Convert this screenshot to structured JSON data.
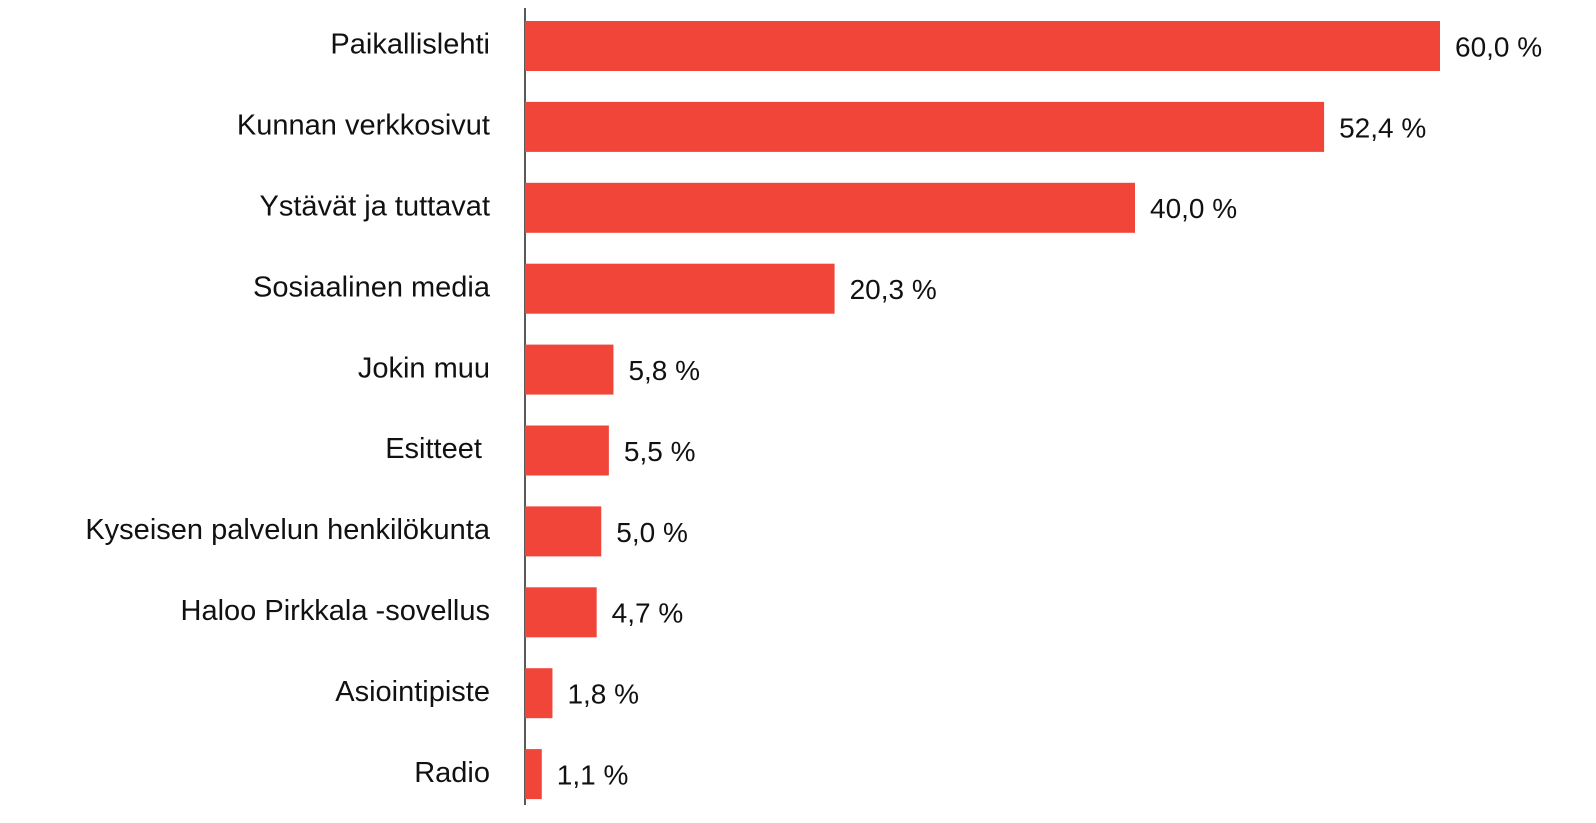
{
  "chart_data": {
    "type": "bar",
    "orientation": "horizontal",
    "categories": [
      "Paikallislehti",
      "Kunnan verkkosivut",
      "Ystävät ja tuttavat",
      "Sosiaalinen media",
      "Jokin muu",
      "Esitteet ",
      "Kyseisen palvelun henkilökunta",
      "Haloo Pirkkala -sovellus",
      "Asiointipiste",
      "Radio"
    ],
    "values": [
      60.0,
      52.4,
      40.0,
      20.3,
      5.8,
      5.5,
      5.0,
      4.7,
      1.8,
      1.1
    ],
    "value_labels": [
      "60,0 %",
      "52,4 %",
      "40,0 %",
      "20,3 %",
      "5,8 %",
      "5,5 %",
      "5,0 %",
      "4,7 %",
      "1,8 %",
      "1,1 %"
    ],
    "color": "#f1453a"
  }
}
